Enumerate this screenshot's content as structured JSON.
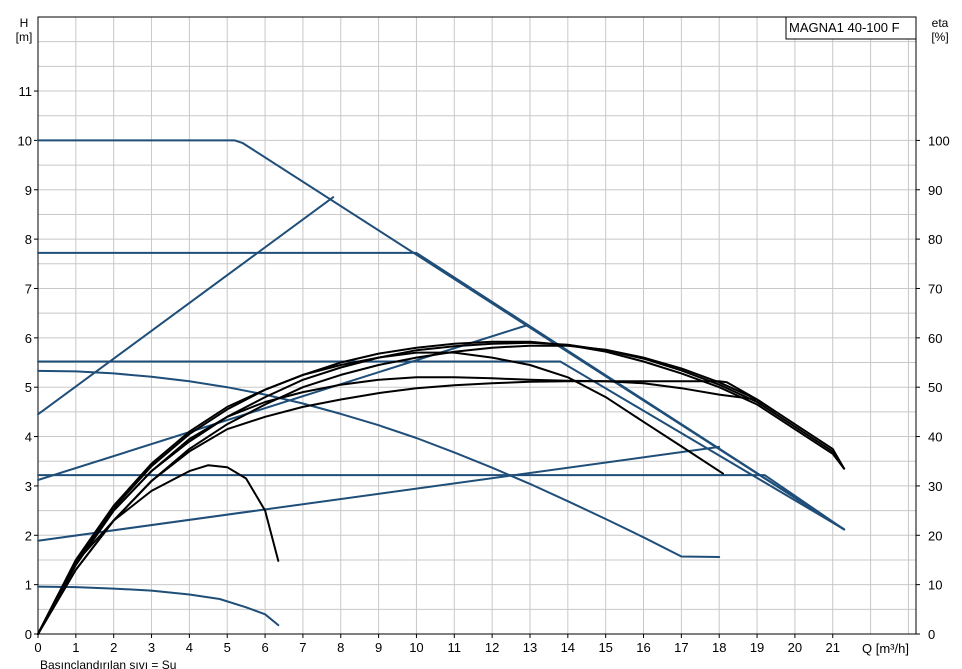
{
  "chart_data": {
    "type": "line",
    "title": "MAGNA1 40-100 F",
    "left_axis": {
      "label": "H",
      "unit": "[m]",
      "ticks": [
        0,
        1,
        2,
        3,
        4,
        5,
        6,
        7,
        8,
        9,
        10,
        11
      ],
      "range": [
        0,
        12.5
      ]
    },
    "right_axis": {
      "label": "eta",
      "unit": "[%]",
      "ticks": [
        0,
        10,
        20,
        30,
        40,
        50,
        60,
        70,
        80,
        90,
        100
      ],
      "range": [
        0,
        125
      ]
    },
    "x_axis": {
      "label": "Q [m³/h]",
      "ticks": [
        0,
        1,
        2,
        3,
        4,
        5,
        6,
        7,
        8,
        9,
        10,
        11,
        12,
        13,
        14,
        15,
        16,
        17,
        18,
        19,
        20,
        21
      ],
      "range": [
        0,
        23.2
      ]
    },
    "footnote": "Basınçlandırılan sıvı = Su",
    "grid": true,
    "colors": {
      "head": "#1f4e79",
      "efficiency": "#000000",
      "grid": "#c8c8c8"
    },
    "head_curves": [
      {
        "points": [
          [
            0,
            10.0
          ],
          [
            5.2,
            10.0
          ],
          [
            5.4,
            9.95
          ],
          [
            21.3,
            2.12
          ]
        ]
      },
      {
        "points": [
          [
            0,
            7.72
          ],
          [
            10.0,
            7.72
          ],
          [
            21.3,
            2.12
          ]
        ]
      },
      {
        "points": [
          [
            0,
            5.52
          ],
          [
            13.8,
            5.52
          ],
          [
            21.3,
            2.12
          ]
        ]
      },
      {
        "points": [
          [
            0,
            3.22
          ],
          [
            19.2,
            3.22
          ],
          [
            21.3,
            2.12
          ]
        ]
      },
      {
        "points": [
          [
            0,
            5.33
          ],
          [
            1,
            5.32
          ],
          [
            2,
            5.28
          ],
          [
            3,
            5.21
          ],
          [
            4,
            5.12
          ],
          [
            5,
            5.0
          ],
          [
            6,
            4.85
          ],
          [
            7,
            4.67
          ],
          [
            8,
            4.46
          ],
          [
            9,
            4.23
          ],
          [
            10,
            3.97
          ],
          [
            11,
            3.68
          ],
          [
            12,
            3.37
          ],
          [
            13,
            3.04
          ],
          [
            14,
            2.69
          ],
          [
            15,
            2.33
          ],
          [
            16,
            1.96
          ],
          [
            17,
            1.57
          ],
          [
            18,
            1.56
          ]
        ]
      },
      {
        "points": [
          [
            0,
            0.96
          ],
          [
            1,
            0.95
          ],
          [
            2,
            0.92
          ],
          [
            3,
            0.88
          ],
          [
            4,
            0.8
          ],
          [
            4.8,
            0.71
          ],
          [
            5.5,
            0.54
          ],
          [
            6,
            0.4
          ],
          [
            6.35,
            0.18
          ]
        ]
      },
      {
        "points": [
          [
            0,
            4.45
          ],
          [
            7.8,
            8.85
          ]
        ]
      },
      {
        "points": [
          [
            0,
            3.12
          ],
          [
            12.9,
            6.25
          ]
        ]
      },
      {
        "points": [
          [
            0,
            1.89
          ],
          [
            18.0,
            3.79
          ]
        ]
      }
    ],
    "efficiency_curves": [
      {
        "points": [
          [
            0,
            0
          ],
          [
            1,
            14
          ],
          [
            2,
            25
          ],
          [
            3,
            33
          ],
          [
            4,
            39.5
          ],
          [
            5,
            44
          ],
          [
            6,
            47
          ],
          [
            7,
            49
          ],
          [
            8,
            50.5
          ],
          [
            9,
            51.5
          ],
          [
            10,
            52
          ],
          [
            11,
            52
          ],
          [
            12,
            51.8
          ],
          [
            13,
            51.5
          ],
          [
            14,
            51.3
          ],
          [
            15,
            51.2
          ],
          [
            16,
            51.2
          ],
          [
            17,
            51.2
          ],
          [
            18,
            51.2
          ],
          [
            18.2,
            51.0
          ],
          [
            19,
            47.5
          ]
        ]
      },
      {
        "points": [
          [
            0,
            0
          ],
          [
            1,
            14.5
          ],
          [
            2,
            25.5
          ],
          [
            3,
            34
          ],
          [
            4,
            40.5
          ],
          [
            5,
            45.5
          ],
          [
            6,
            49.5
          ],
          [
            7,
            52.5
          ],
          [
            8,
            54.5
          ],
          [
            9,
            56
          ],
          [
            10,
            57
          ],
          [
            11,
            57
          ],
          [
            12,
            56
          ],
          [
            13,
            54.5
          ],
          [
            14,
            52
          ],
          [
            15,
            48
          ],
          [
            16,
            43
          ],
          [
            17,
            38
          ],
          [
            18.1,
            32.5
          ]
        ]
      },
      {
        "points": [
          [
            0,
            0
          ],
          [
            1,
            13
          ],
          [
            2,
            23
          ],
          [
            3,
            31
          ],
          [
            4,
            37
          ],
          [
            5,
            41.5
          ],
          [
            6,
            44
          ],
          [
            7,
            46
          ],
          [
            8,
            47.5
          ],
          [
            9,
            48.8
          ],
          [
            10,
            49.8
          ],
          [
            11,
            50.4
          ],
          [
            12,
            50.8
          ],
          [
            13,
            51.1
          ],
          [
            14,
            51.2
          ],
          [
            15,
            51.2
          ],
          [
            16,
            50.8
          ],
          [
            17,
            49.8
          ],
          [
            18,
            48.5
          ],
          [
            19,
            47.5
          ],
          [
            19.5,
            45
          ]
        ]
      },
      {
        "points": [
          [
            0,
            0
          ],
          [
            1,
            15
          ],
          [
            2,
            26
          ],
          [
            3,
            34.5
          ],
          [
            4,
            41
          ],
          [
            5,
            46
          ],
          [
            6,
            49.5
          ],
          [
            7,
            52.5
          ],
          [
            8,
            55
          ],
          [
            9,
            56.8
          ],
          [
            10,
            58
          ],
          [
            11,
            58.8
          ],
          [
            12,
            59.2
          ],
          [
            13,
            59.2
          ],
          [
            14,
            58.5
          ],
          [
            15,
            57.2
          ],
          [
            16,
            55.2
          ],
          [
            17,
            52.8
          ],
          [
            18,
            50
          ],
          [
            19,
            46.5
          ],
          [
            20,
            41.5
          ],
          [
            21,
            36.5
          ],
          [
            21.3,
            33.5
          ]
        ]
      },
      {
        "points": [
          [
            0,
            0
          ],
          [
            1,
            14
          ],
          [
            2,
            25
          ],
          [
            3,
            33
          ],
          [
            4,
            39
          ],
          [
            5,
            44
          ],
          [
            6,
            48
          ],
          [
            7,
            51.5
          ],
          [
            8,
            54
          ],
          [
            9,
            56
          ],
          [
            10,
            57.5
          ],
          [
            11,
            58.3
          ],
          [
            12,
            58.8
          ],
          [
            13,
            59
          ],
          [
            14,
            58.6
          ],
          [
            15,
            57.5
          ],
          [
            16,
            55.8
          ],
          [
            17,
            53.4
          ],
          [
            18,
            50.5
          ],
          [
            19,
            47
          ],
          [
            20,
            42
          ],
          [
            21,
            37
          ],
          [
            21.3,
            33.5
          ]
        ]
      },
      {
        "points": [
          [
            0,
            0
          ],
          [
            1,
            13
          ],
          [
            2,
            23
          ],
          [
            3,
            31
          ],
          [
            4,
            37.5
          ],
          [
            5,
            42.5
          ],
          [
            6,
            46.5
          ],
          [
            7,
            50
          ],
          [
            8,
            52.5
          ],
          [
            9,
            54.5
          ],
          [
            10,
            56
          ],
          [
            11,
            57.2
          ],
          [
            12,
            58
          ],
          [
            13,
            58.4
          ],
          [
            14,
            58.4
          ],
          [
            15,
            57.6
          ],
          [
            16,
            56
          ],
          [
            17,
            53.8
          ],
          [
            18,
            51
          ],
          [
            19,
            47.5
          ],
          [
            20,
            42.5
          ],
          [
            21,
            37.5
          ],
          [
            21.3,
            33.5
          ]
        ]
      },
      {
        "points": [
          [
            0,
            0
          ],
          [
            0.5,
            7.5
          ],
          [
            1,
            14.5
          ],
          [
            2,
            23
          ],
          [
            3,
            29
          ],
          [
            4,
            33
          ],
          [
            4.5,
            34.2
          ],
          [
            5,
            33.8
          ],
          [
            5.5,
            31.5
          ],
          [
            6,
            25
          ],
          [
            6.35,
            14.8
          ]
        ]
      }
    ]
  }
}
